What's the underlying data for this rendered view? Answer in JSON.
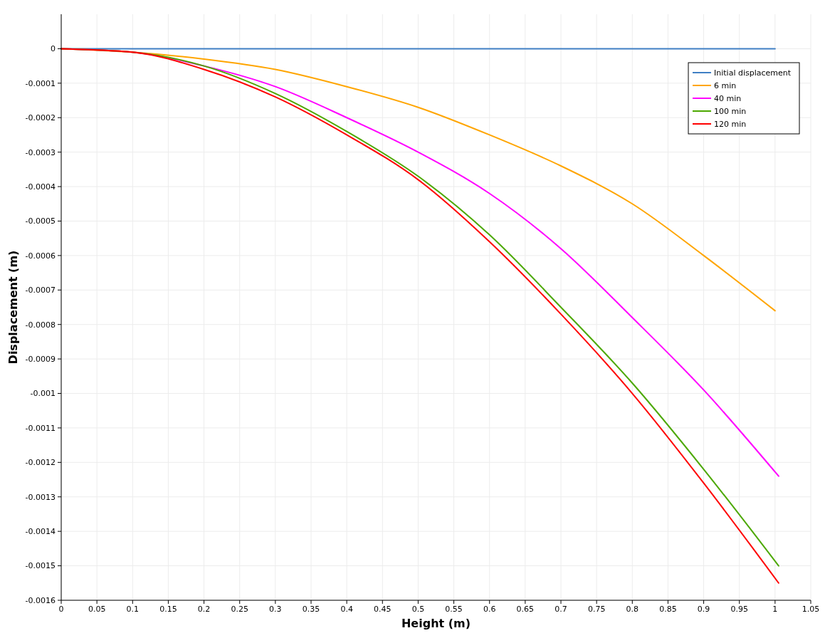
{
  "chart_data": {
    "type": "line",
    "xlabel": "Height (m)",
    "ylabel": "Displacement (m)",
    "xlim": [
      0,
      1.05
    ],
    "xticks": [
      0,
      0.05,
      0.1,
      0.15,
      0.2,
      0.25,
      0.3,
      0.35,
      0.4,
      0.45,
      0.5,
      0.55,
      0.6,
      0.65,
      0.7,
      0.75,
      0.8,
      0.85,
      0.9,
      0.95,
      1,
      1.05
    ],
    "ylim": [
      -0.0016,
      0.0001
    ],
    "yticks": [
      -0.0016,
      -0.0015,
      -0.0014,
      -0.0013,
      -0.0012,
      -0.0011,
      -0.001,
      -0.0009,
      -0.0008,
      -0.0007,
      -0.0006,
      -0.0005,
      -0.0004,
      -0.0003,
      -0.0002,
      -0.0001,
      0
    ],
    "grid": true,
    "legend": "top right",
    "marker": "none",
    "line_style": "solid",
    "series": [
      {
        "name": "Initial displacement",
        "color": "#3f7fc4",
        "x": [
          0,
          1
        ],
        "values": [
          0,
          0
        ]
      },
      {
        "name": "6 min",
        "color": "#ffa500",
        "x": [
          0,
          0.1,
          0.2,
          0.3,
          0.4,
          0.5,
          0.6,
          0.7,
          0.8,
          0.9,
          1
        ],
        "values": [
          0,
          -1e-05,
          -3e-05,
          -6e-05,
          -0.00011,
          -0.00017,
          -0.00025,
          -0.00034,
          -0.00045,
          -0.0006,
          -0.00076
        ]
      },
      {
        "name": "40 min",
        "color": "#ff00ff",
        "x": [
          0,
          0.1,
          0.2,
          0.3,
          0.4,
          0.5,
          0.6,
          0.7,
          0.8,
          0.9,
          1.005
        ],
        "values": [
          0,
          -1e-05,
          -5e-05,
          -0.00011,
          -0.0002,
          -0.0003,
          -0.00042,
          -0.00058,
          -0.00078,
          -0.00099,
          -0.00124
        ]
      },
      {
        "name": "100 min",
        "color": "#4ca800",
        "x": [
          0,
          0.1,
          0.2,
          0.3,
          0.4,
          0.5,
          0.6,
          0.7,
          0.8,
          0.9,
          1.005
        ],
        "values": [
          0,
          -1e-05,
          -5e-05,
          -0.00013,
          -0.00024,
          -0.00037,
          -0.00054,
          -0.00075,
          -0.00097,
          -0.00122,
          -0.0015
        ]
      },
      {
        "name": "120 min",
        "color": "#ff0000",
        "x": [
          0,
          0.1,
          0.2,
          0.3,
          0.4,
          0.5,
          0.6,
          0.7,
          0.8,
          0.9,
          1.005
        ],
        "values": [
          0,
          -1e-05,
          -6e-05,
          -0.00014,
          -0.00025,
          -0.00038,
          -0.00056,
          -0.00077,
          -0.001,
          -0.00126,
          -0.00155
        ]
      }
    ]
  }
}
